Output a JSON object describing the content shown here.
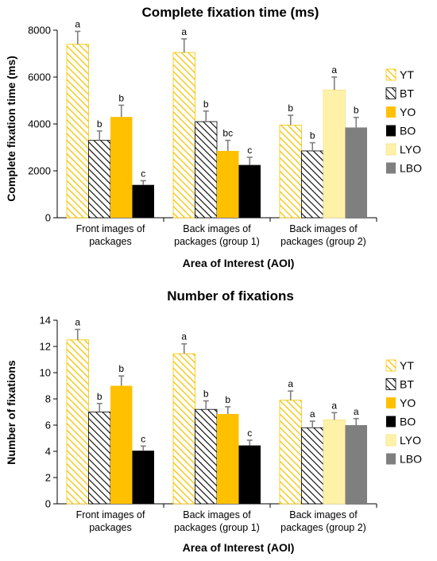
{
  "colors": {
    "YT": "#f5c400",
    "BT": "#000000",
    "YO": "#ffc000",
    "BO": "#000000",
    "LYO": "#fff2a8",
    "LBO": "#7f7f7f",
    "error": "#7f7f7f"
  },
  "chart_data": [
    {
      "type": "bar",
      "title": "Complete fixation time (ms)",
      "xlabel": "Area of Interest (AOI)",
      "ylabel": "Complete fixation time (ms)",
      "ylim": [
        0,
        8000
      ],
      "yticks": [
        0,
        2000,
        4000,
        6000,
        8000
      ],
      "grid": false,
      "legend_position": "right",
      "categories": [
        [
          "Front images of",
          "packages"
        ],
        [
          "Back images of",
          "packages (group 1)"
        ],
        [
          "Back images of",
          "packages (group 2)"
        ]
      ],
      "groups": [
        {
          "bars": [
            {
              "series": "YT",
              "value": 7400,
              "error": 550,
              "label": "a"
            },
            {
              "series": "BT",
              "value": 3300,
              "error": 400,
              "label": "b"
            },
            {
              "series": "YO",
              "value": 4300,
              "error": 500,
              "label": "b"
            },
            {
              "series": "BO",
              "value": 1400,
              "error": 180,
              "label": "c"
            }
          ]
        },
        {
          "bars": [
            {
              "series": "YT",
              "value": 7050,
              "error": 580,
              "label": "a"
            },
            {
              "series": "BT",
              "value": 4100,
              "error": 450,
              "label": "b"
            },
            {
              "series": "YO",
              "value": 2850,
              "error": 450,
              "label": "bc"
            },
            {
              "series": "BO",
              "value": 2250,
              "error": 330,
              "label": "c"
            }
          ]
        },
        {
          "bars": [
            {
              "series": "YT",
              "value": 3950,
              "error": 420,
              "label": "b"
            },
            {
              "series": "BT",
              "value": 2850,
              "error": 350,
              "label": "b"
            },
            {
              "series": "LYO",
              "value": 5450,
              "error": 550,
              "label": "a"
            },
            {
              "series": "LBO",
              "value": 3850,
              "error": 430,
              "label": "b"
            }
          ]
        }
      ],
      "legend": [
        "YT",
        "BT",
        "YO",
        "BO",
        "LYO",
        "LBO"
      ]
    },
    {
      "type": "bar",
      "title": "Number of fixations",
      "xlabel": "Area of Interest (AOI)",
      "ylabel": "Number of fixations",
      "ylim": [
        0,
        14
      ],
      "yticks": [
        0,
        2,
        4,
        6,
        8,
        10,
        12,
        14
      ],
      "grid": false,
      "legend_position": "right",
      "categories": [
        [
          "Front images of",
          "packages"
        ],
        [
          "Back images of",
          "packages (group 1)"
        ],
        [
          "Back images of",
          "packages (group 2)"
        ]
      ],
      "groups": [
        {
          "bars": [
            {
              "series": "YT",
              "value": 12.5,
              "error": 0.8,
              "label": "a"
            },
            {
              "series": "BT",
              "value": 7.0,
              "error": 0.65,
              "label": "b"
            },
            {
              "series": "YO",
              "value": 9.0,
              "error": 0.75,
              "label": "b"
            },
            {
              "series": "BO",
              "value": 4.05,
              "error": 0.35,
              "label": "c"
            }
          ]
        },
        {
          "bars": [
            {
              "series": "YT",
              "value": 11.45,
              "error": 0.75,
              "label": "a"
            },
            {
              "series": "BT",
              "value": 7.2,
              "error": 0.65,
              "label": "b"
            },
            {
              "series": "YO",
              "value": 6.85,
              "error": 0.55,
              "label": "b"
            },
            {
              "series": "BO",
              "value": 4.45,
              "error": 0.4,
              "label": "c"
            }
          ]
        },
        {
          "bars": [
            {
              "series": "YT",
              "value": 7.9,
              "error": 0.7,
              "label": "a"
            },
            {
              "series": "BT",
              "value": 5.8,
              "error": 0.5,
              "label": "a"
            },
            {
              "series": "LYO",
              "value": 6.4,
              "error": 0.55,
              "label": "a"
            },
            {
              "series": "LBO",
              "value": 6.0,
              "error": 0.5,
              "label": "a"
            }
          ]
        }
      ],
      "legend": [
        "YT",
        "BT",
        "YO",
        "BO",
        "LYO",
        "LBO"
      ]
    }
  ]
}
